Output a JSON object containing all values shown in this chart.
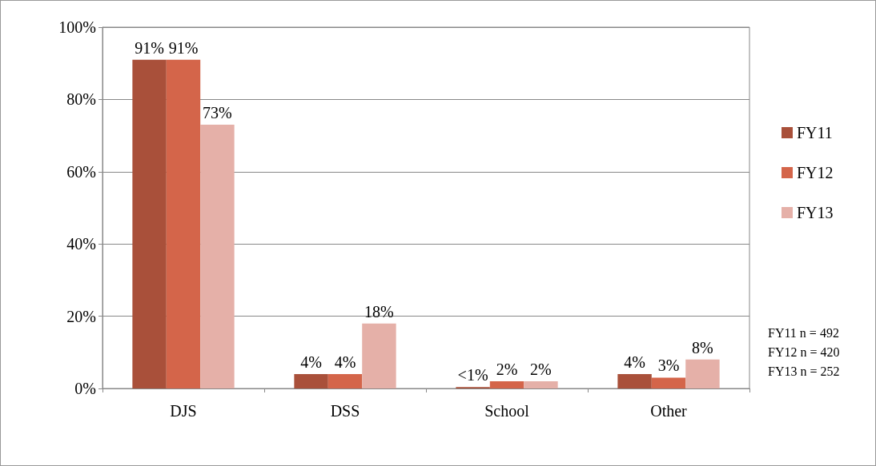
{
  "chart_data": {
    "type": "bar",
    "categories": [
      "DJS",
      "DSS",
      "School",
      "Other"
    ],
    "series": [
      {
        "name": "FY11",
        "color": "#a9503a",
        "values": [
          91,
          4,
          0.4,
          4
        ],
        "value_labels": [
          "91%",
          "4%",
          "<1%",
          "4%"
        ]
      },
      {
        "name": "FY12",
        "color": "#d4654a",
        "values": [
          91,
          4,
          2,
          3
        ],
        "value_labels": [
          "91%",
          "4%",
          "2%",
          "3%"
        ]
      },
      {
        "name": "FY13",
        "color": "#e5b0a8",
        "values": [
          73,
          18,
          2,
          8
        ],
        "value_labels": [
          "73%",
          "18%",
          "2%",
          "8%"
        ]
      }
    ],
    "ylim": [
      0,
      100
    ],
    "yticks": [
      {
        "value": 0,
        "label": "0%"
      },
      {
        "value": 20,
        "label": "20%"
      },
      {
        "value": 40,
        "label": "40%"
      },
      {
        "value": 60,
        "label": "60%"
      },
      {
        "value": 80,
        "label": "80%"
      },
      {
        "value": 100,
        "label": "100%"
      }
    ],
    "grid": "y",
    "legend": "right",
    "annotations": [
      "FY11 n = 492",
      "FY12 n = 420",
      "FY13 n = 252"
    ]
  }
}
